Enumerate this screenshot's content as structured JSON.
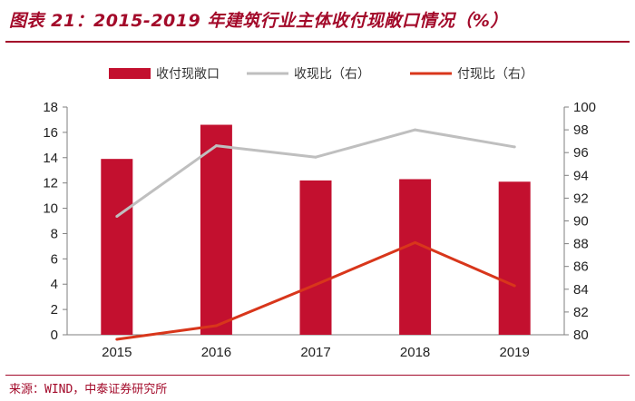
{
  "figure_title": "图表 21：2015-2019 年建筑行业主体收付现敞口情况（%）",
  "source": "来源：WIND，中泰证券研究所",
  "chart_data": {
    "type": "bar",
    "categories": [
      "2015",
      "2016",
      "2017",
      "2018",
      "2019"
    ],
    "series": [
      {
        "name": "收付现敞口",
        "kind": "bar",
        "axis": "left",
        "color": "#c3102f",
        "values": [
          13.9,
          16.6,
          12.2,
          12.3,
          12.1
        ]
      },
      {
        "name": "收现比（右）",
        "kind": "line",
        "axis": "right",
        "color": "#bfbfbf",
        "values": [
          90.4,
          96.6,
          95.6,
          98.0,
          96.5
        ]
      },
      {
        "name": "付现比（右）",
        "kind": "line",
        "axis": "right",
        "color": "#d8361b",
        "values": [
          79.6,
          80.8,
          84.4,
          88.1,
          84.3
        ]
      }
    ],
    "y_left": {
      "min": 0,
      "max": 18,
      "step": 2,
      "ticks": [
        "0",
        "2",
        "4",
        "6",
        "8",
        "10",
        "12",
        "14",
        "16",
        "18"
      ]
    },
    "y_right": {
      "min": 80,
      "max": 100,
      "step": 2,
      "ticks": [
        "80",
        "82",
        "84",
        "86",
        "88",
        "90",
        "92",
        "94",
        "96",
        "98",
        "100"
      ]
    },
    "legend_position": "top",
    "grid": false
  }
}
